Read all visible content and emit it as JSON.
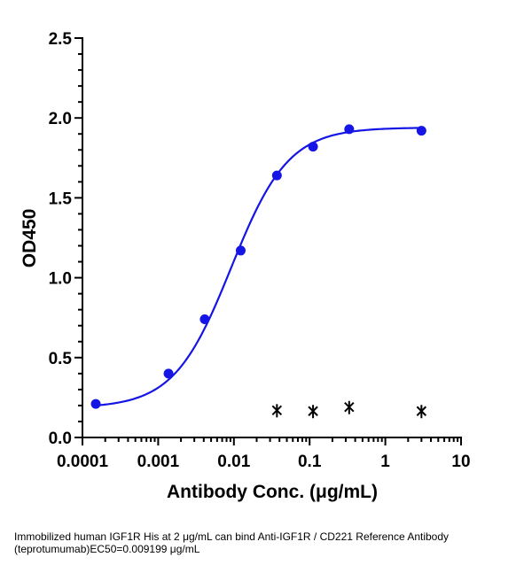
{
  "chart_data": {
    "type": "scatter",
    "title": "",
    "xlabel": "Antibody Conc. (μg/mL)",
    "ylabel": "OD450",
    "xscale": "log",
    "xlim": [
      0.0001,
      10
    ],
    "ylim": [
      0,
      2.5
    ],
    "x_tick_labels": [
      "0.0001",
      "0.001",
      "0.01",
      "0.1",
      "1",
      "10"
    ],
    "y_tick_labels": [
      "0.0",
      "0.5",
      "1.0",
      "1.5",
      "2.0",
      "2.5"
    ],
    "grid": false,
    "legend": "none",
    "series": [
      {
        "marker": "circle",
        "color": "#1515e6",
        "x": [
          0.00015,
          0.00137,
          0.00412,
          0.0123,
          0.037,
          0.111,
          0.333,
          3.0
        ],
        "y": [
          0.21,
          0.4,
          0.74,
          1.17,
          1.64,
          1.82,
          1.93,
          1.92
        ],
        "fit": {
          "model": "4PL",
          "bottom": 0.185,
          "top": 1.94,
          "ec50": 0.009199,
          "hill": 1.15
        }
      },
      {
        "marker": "cross",
        "color": "#000000",
        "x": [
          0.037,
          0.111,
          0.333,
          3.0
        ],
        "y": [
          0.17,
          0.165,
          0.19,
          0.165
        ]
      }
    ]
  },
  "caption": {
    "line1": "Immobilized human IGF1R His at 2  μg/mL can bind  Anti-IGF1R / CD221 Reference Antibody",
    "line2": "(teprotumumab)EC50=0.009199 μg/mL"
  }
}
